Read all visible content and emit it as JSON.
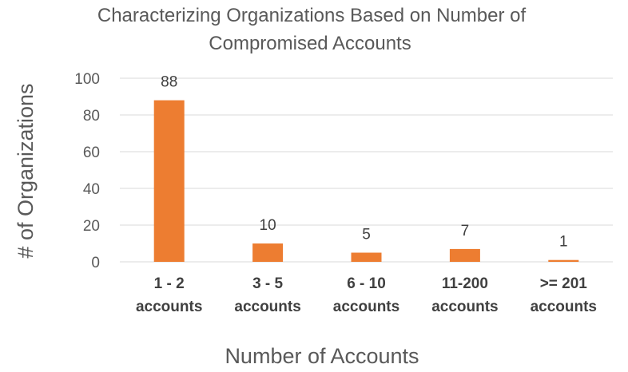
{
  "chart_data": {
    "type": "bar",
    "title_lines": [
      "Characterizing Organizations Based on Number of",
      "Compromised Accounts"
    ],
    "xlabel": "Number of Accounts",
    "ylabel": "# of Organizations",
    "categories": [
      [
        "1 - 2",
        "accounts"
      ],
      [
        "3 - 5",
        "accounts"
      ],
      [
        "6 - 10",
        "accounts"
      ],
      [
        "11-200",
        "accounts"
      ],
      [
        ">= 201",
        "accounts"
      ]
    ],
    "values": [
      88,
      10,
      5,
      7,
      1
    ],
    "data_labels": [
      "88",
      "10",
      "5",
      "7",
      "1"
    ],
    "ylim": [
      0,
      100
    ],
    "yticks": [
      0,
      20,
      40,
      60,
      80,
      100
    ],
    "grid": true,
    "legend": "none",
    "bar_color": "#ED7D31"
  }
}
